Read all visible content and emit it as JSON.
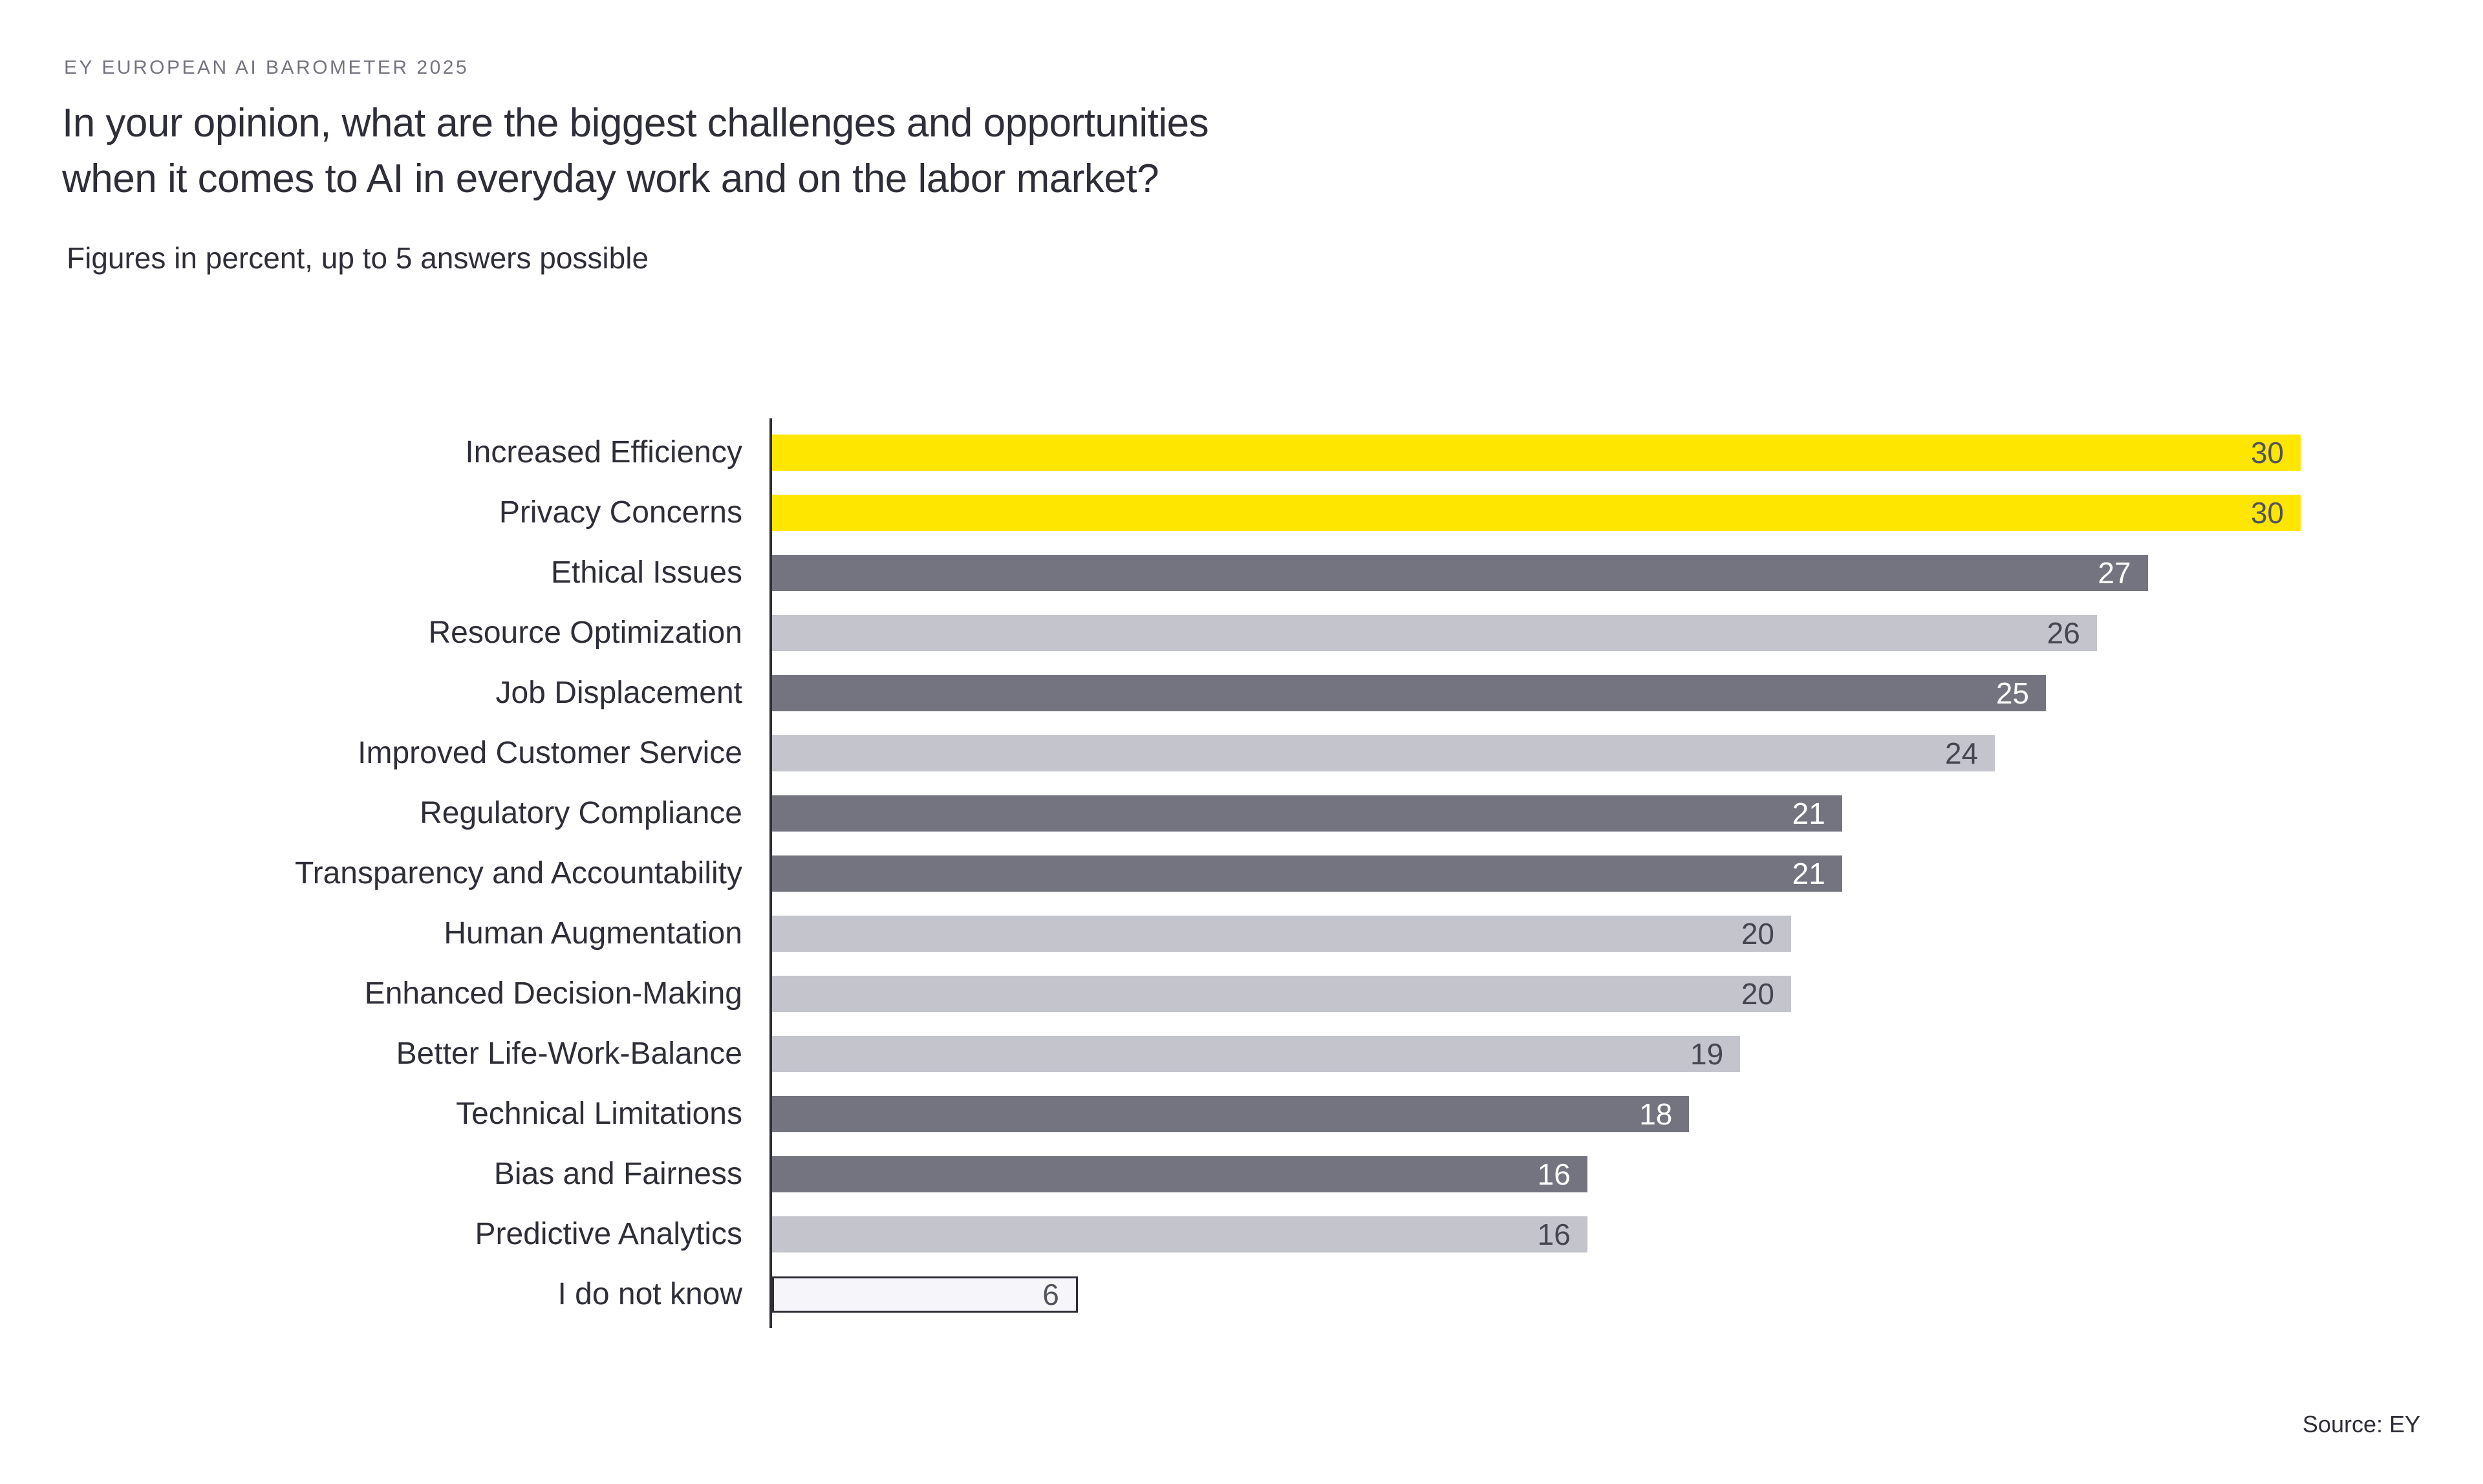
{
  "header": {
    "kicker": "EY EUROPEAN AI BAROMETER 2025",
    "title_line1": "In your opinion, what are the biggest challenges and opportunities",
    "title_line2": "when it comes to AI in everyday work and on the labor market?",
    "subtitle": "Figures in percent, up to 5 answers possible"
  },
  "chart_data": {
    "type": "bar",
    "orientation": "horizontal",
    "title": "In your opinion, what are the biggest challenges and opportunities when it comes to AI in everyday work and on the labor market?",
    "xlabel": "",
    "ylabel": "",
    "xlim": [
      0,
      30
    ],
    "grid": false,
    "value_labels": "inside-end",
    "categories": [
      "Increased Efficiency",
      "Privacy Concerns",
      "Ethical Issues",
      "Resource Optimization",
      "Job Displacement",
      "Improved Customer Service",
      "Regulatory Compliance",
      "Transparency and Accountability",
      "Human Augmentation",
      "Enhanced Decision-Making",
      "Better Life-Work-Balance",
      "Technical Limitations",
      "Bias and Fairness",
      "Predictive Analytics",
      "I do not know"
    ],
    "values": [
      30,
      30,
      27,
      26,
      25,
      24,
      21,
      21,
      20,
      20,
      19,
      18,
      16,
      16,
      6
    ],
    "bar_styles": [
      "yellow",
      "yellow",
      "dark",
      "light",
      "dark",
      "light",
      "dark",
      "dark",
      "light",
      "light",
      "light",
      "dark",
      "dark",
      "light",
      "outline"
    ],
    "palette": {
      "yellow": {
        "fill": "#FFE600",
        "text": "#53535E"
      },
      "dark": {
        "fill": "#747480",
        "text": "#FFFFFF"
      },
      "light": {
        "fill": "#C4C4CD",
        "text": "#45464F"
      },
      "outline": {
        "fill": "#F6F6FA",
        "text": "#53535E",
        "border": "#2E2E38"
      }
    },
    "axis_color": "#2E2E38"
  },
  "footer": {
    "source": "Source: EY"
  }
}
